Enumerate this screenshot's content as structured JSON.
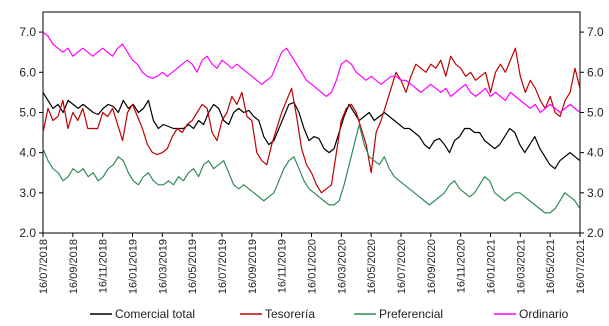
{
  "chart_data": {
    "type": "line",
    "x_ticks": [
      "16/07/2018",
      "16/09/2018",
      "16/11/2018",
      "16/01/2019",
      "16/03/2019",
      "16/05/2019",
      "16/07/2019",
      "16/09/2019",
      "16/11/2019",
      "16/01/2020",
      "16/03/2020",
      "16/05/2020",
      "16/07/2020",
      "16/09/2020",
      "16/11/2020",
      "16/01/2021",
      "16/03/2021",
      "16/05/2021",
      "16/07/2021"
    ],
    "y_ticks": [
      "2.0",
      "3.0",
      "4.0",
      "5.0",
      "6.0",
      "7.0"
    ],
    "y_ticks_right": [
      "2.0",
      "3.0",
      "4.0",
      "5.0",
      "6.0",
      "7.0"
    ],
    "ylim": [
      2.0,
      7.5
    ],
    "legend_position": "bottom",
    "series": [
      {
        "name": "Comercial total",
        "color": "#000000",
        "values": [
          5.5,
          5.3,
          5.1,
          5.2,
          5.0,
          5.3,
          5.2,
          5.1,
          5.2,
          5.1,
          5.0,
          4.95,
          5.1,
          5.2,
          5.15,
          5.0,
          5.3,
          5.1,
          5.2,
          5.0,
          5.1,
          5.3,
          4.8,
          4.6,
          4.7,
          4.65,
          4.6,
          4.6,
          4.6,
          4.7,
          4.6,
          4.8,
          4.7,
          5.0,
          5.2,
          5.1,
          4.8,
          4.7,
          5.0,
          5.1,
          5.0,
          5.05,
          4.9,
          4.8,
          4.4,
          4.2,
          4.3,
          4.6,
          4.9,
          5.2,
          5.25,
          5.0,
          4.6,
          4.3,
          4.4,
          4.35,
          4.1,
          4.0,
          4.1,
          4.5,
          4.9,
          5.2,
          5.0,
          4.8,
          4.9,
          5.0,
          4.8,
          4.9,
          5.0,
          4.9,
          4.8,
          4.7,
          4.6,
          4.6,
          4.5,
          4.4,
          4.2,
          4.1,
          4.3,
          4.35,
          4.2,
          4.0,
          4.3,
          4.4,
          4.6,
          4.6,
          4.5,
          4.5,
          4.3,
          4.2,
          4.1,
          4.2,
          4.4,
          4.6,
          4.5,
          4.2,
          4.0,
          4.2,
          4.4,
          4.1,
          3.9,
          3.7,
          3.6,
          3.8,
          3.9,
          4.0,
          3.9,
          3.8
        ]
      },
      {
        "name": "Tesorería",
        "color": "#c00000",
        "values": [
          4.5,
          5.1,
          4.8,
          4.9,
          5.3,
          4.6,
          5.0,
          4.8,
          5.1,
          4.6,
          4.6,
          4.6,
          5.0,
          4.9,
          5.1,
          4.7,
          4.3,
          5.0,
          5.2,
          4.9,
          4.6,
          4.2,
          4.0,
          3.95,
          4.0,
          4.1,
          4.4,
          4.6,
          4.5,
          4.7,
          4.8,
          5.0,
          5.2,
          5.1,
          4.5,
          4.3,
          4.8,
          5.0,
          5.4,
          5.2,
          5.5,
          4.9,
          4.8,
          4.0,
          3.8,
          3.7,
          4.2,
          4.6,
          5.0,
          5.3,
          5.6,
          4.9,
          4.1,
          3.7,
          3.5,
          3.2,
          3.0,
          3.1,
          3.2,
          4.0,
          4.8,
          5.1,
          5.2,
          5.0,
          4.6,
          4.2,
          3.5,
          4.5,
          4.8,
          5.2,
          5.6,
          6.0,
          5.8,
          5.5,
          5.9,
          6.2,
          6.1,
          6.0,
          6.2,
          6.1,
          6.3,
          5.9,
          6.4,
          6.2,
          6.1,
          5.9,
          6.0,
          5.8,
          5.9,
          6.0,
          5.5,
          6.0,
          6.2,
          6.0,
          6.3,
          6.6,
          5.9,
          5.5,
          5.8,
          5.6,
          5.3,
          5.1,
          5.4,
          5.0,
          4.9,
          5.3,
          5.5,
          6.1,
          5.6
        ]
      },
      {
        "name": "Preferencial",
        "color": "#2e8b57",
        "values": [
          4.1,
          3.8,
          3.6,
          3.5,
          3.3,
          3.4,
          3.6,
          3.5,
          3.6,
          3.4,
          3.5,
          3.3,
          3.4,
          3.6,
          3.7,
          3.9,
          3.8,
          3.5,
          3.3,
          3.2,
          3.4,
          3.5,
          3.3,
          3.2,
          3.2,
          3.3,
          3.2,
          3.4,
          3.3,
          3.5,
          3.6,
          3.4,
          3.7,
          3.8,
          3.6,
          3.7,
          3.8,
          3.5,
          3.2,
          3.1,
          3.2,
          3.1,
          3.0,
          2.9,
          2.8,
          2.9,
          3.0,
          3.3,
          3.6,
          3.8,
          3.9,
          3.6,
          3.3,
          3.1,
          3.0,
          2.9,
          2.8,
          2.7,
          2.7,
          2.8,
          3.2,
          3.7,
          4.2,
          4.7,
          4.2,
          3.9,
          3.8,
          3.7,
          3.9,
          3.6,
          3.4,
          3.3,
          3.2,
          3.1,
          3.0,
          2.9,
          2.8,
          2.7,
          2.8,
          2.9,
          3.0,
          3.2,
          3.3,
          3.1,
          3.0,
          2.9,
          3.0,
          3.2,
          3.4,
          3.3,
          3.0,
          2.9,
          2.8,
          2.9,
          3.0,
          3.0,
          2.9,
          2.8,
          2.7,
          2.6,
          2.5,
          2.5,
          2.6,
          2.8,
          3.0,
          2.9,
          2.8,
          2.6
        ]
      },
      {
        "name": "Ordinario",
        "color": "#ff00ff",
        "values": [
          7.0,
          6.9,
          6.7,
          6.6,
          6.5,
          6.6,
          6.4,
          6.5,
          6.6,
          6.5,
          6.4,
          6.5,
          6.6,
          6.5,
          6.4,
          6.6,
          6.7,
          6.5,
          6.3,
          6.2,
          6.0,
          5.9,
          5.85,
          5.9,
          6.0,
          5.9,
          6.0,
          6.1,
          6.2,
          6.3,
          6.2,
          6.0,
          6.3,
          6.4,
          6.2,
          6.1,
          6.3,
          6.2,
          6.1,
          6.2,
          6.1,
          6.0,
          5.9,
          5.8,
          5.7,
          5.8,
          5.9,
          6.2,
          6.5,
          6.6,
          6.4,
          6.2,
          6.0,
          5.8,
          5.7,
          5.6,
          5.5,
          5.4,
          5.5,
          5.8,
          6.2,
          6.3,
          6.2,
          6.0,
          5.9,
          5.8,
          5.9,
          5.8,
          5.7,
          5.8,
          5.9,
          5.9,
          5.8,
          5.8,
          5.7,
          5.6,
          5.5,
          5.6,
          5.7,
          5.6,
          5.5,
          5.6,
          5.4,
          5.5,
          5.6,
          5.7,
          5.5,
          5.4,
          5.5,
          5.6,
          5.4,
          5.5,
          5.4,
          5.3,
          5.5,
          5.4,
          5.3,
          5.2,
          5.1,
          5.2,
          5.0,
          5.1,
          5.2,
          5.1,
          5.0,
          5.1,
          5.2,
          5.1,
          5.0
        ]
      }
    ]
  }
}
